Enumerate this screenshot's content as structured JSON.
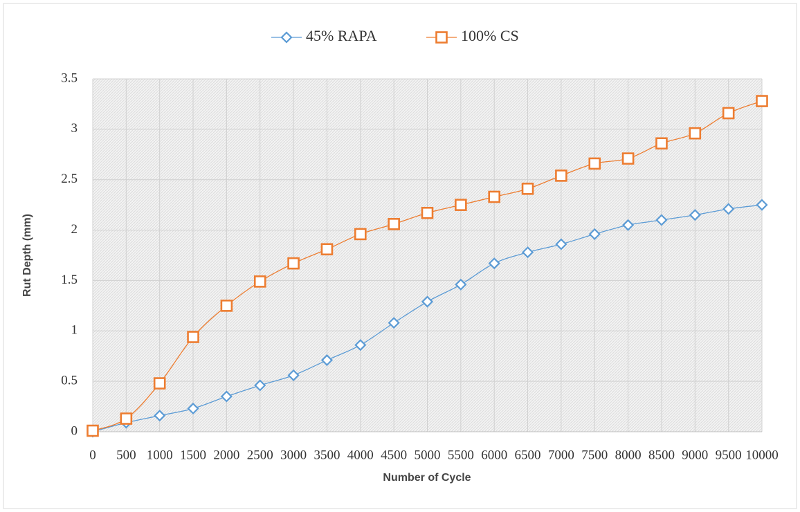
{
  "chart_data": {
    "type": "line",
    "x": [
      0,
      500,
      1000,
      1500,
      2000,
      2500,
      3000,
      3500,
      4000,
      4500,
      5000,
      5500,
      6000,
      6500,
      7000,
      7500,
      8000,
      8500,
      9000,
      9500,
      10000
    ],
    "series": [
      {
        "name": "45% RAPA",
        "color": "#5b9bd5",
        "marker": "diamond",
        "values": [
          0,
          0.09,
          0.16,
          0.23,
          0.35,
          0.46,
          0.56,
          0.71,
          0.86,
          1.08,
          1.29,
          1.46,
          1.67,
          1.78,
          1.86,
          1.96,
          2.05,
          2.1,
          2.15,
          2.21,
          2.25
        ]
      },
      {
        "name": "100% CS",
        "color": "#ed7d31",
        "marker": "square",
        "values": [
          0.01,
          0.13,
          0.48,
          0.94,
          1.25,
          1.49,
          1.67,
          1.81,
          1.96,
          2.06,
          2.17,
          2.25,
          2.33,
          2.41,
          2.54,
          2.66,
          2.71,
          2.86,
          2.96,
          3.16,
          3.28
        ]
      }
    ],
    "x_label": "Number of Cycle",
    "y_label": "Rut Depth (mm)",
    "xlim": [
      0,
      10000
    ],
    "xticks": [
      0,
      500,
      1000,
      1500,
      2000,
      2500,
      3000,
      3500,
      4000,
      4500,
      5000,
      5500,
      6000,
      6500,
      7000,
      7500,
      8000,
      8500,
      9000,
      9500,
      10000
    ],
    "ylim": [
      0,
      3.5
    ],
    "yticks": [
      0,
      0.5,
      1,
      1.5,
      2,
      2.5,
      3,
      3.5
    ],
    "grid": true,
    "legend": "top"
  }
}
